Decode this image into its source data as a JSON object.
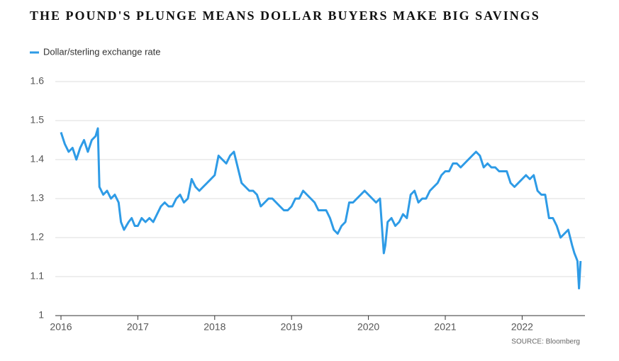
{
  "chart_data": {
    "type": "line",
    "title": "THE POUND'S PLUNGE MEANS DOLLAR BUYERS MAKE BIG SAVINGS",
    "source": "SOURCE: Bloomberg",
    "x": [
      2016.0,
      2016.05,
      2016.1,
      2016.15,
      2016.2,
      2016.25,
      2016.3,
      2016.35,
      2016.4,
      2016.45,
      2016.48,
      2016.5,
      2016.55,
      2016.6,
      2016.65,
      2016.7,
      2016.75,
      2016.78,
      2016.82,
      2016.88,
      2016.92,
      2016.96,
      2017.0,
      2017.05,
      2017.1,
      2017.15,
      2017.2,
      2017.25,
      2017.3,
      2017.35,
      2017.4,
      2017.45,
      2017.5,
      2017.55,
      2017.6,
      2017.65,
      2017.7,
      2017.75,
      2017.8,
      2017.85,
      2017.9,
      2017.95,
      2018.0,
      2018.05,
      2018.1,
      2018.15,
      2018.2,
      2018.25,
      2018.3,
      2018.35,
      2018.4,
      2018.45,
      2018.5,
      2018.55,
      2018.6,
      2018.65,
      2018.7,
      2018.75,
      2018.8,
      2018.85,
      2018.9,
      2018.95,
      2019.0,
      2019.05,
      2019.1,
      2019.15,
      2019.2,
      2019.25,
      2019.3,
      2019.35,
      2019.4,
      2019.45,
      2019.5,
      2019.55,
      2019.6,
      2019.65,
      2019.7,
      2019.75,
      2019.8,
      2019.85,
      2019.9,
      2019.95,
      2020.0,
      2020.05,
      2020.1,
      2020.15,
      2020.2,
      2020.22,
      2020.25,
      2020.3,
      2020.35,
      2020.4,
      2020.45,
      2020.5,
      2020.55,
      2020.6,
      2020.65,
      2020.7,
      2020.75,
      2020.8,
      2020.85,
      2020.9,
      2020.95,
      2021.0,
      2021.05,
      2021.1,
      2021.15,
      2021.2,
      2021.25,
      2021.3,
      2021.35,
      2021.4,
      2021.45,
      2021.5,
      2021.55,
      2021.6,
      2021.65,
      2021.7,
      2021.75,
      2021.8,
      2021.85,
      2021.9,
      2021.95,
      2022.0,
      2022.05,
      2022.1,
      2022.15,
      2022.2,
      2022.25,
      2022.3,
      2022.35,
      2022.4,
      2022.45,
      2022.5,
      2022.55,
      2022.6,
      2022.65,
      2022.68,
      2022.7,
      2022.72,
      2022.74,
      2022.76
    ],
    "series": [
      {
        "name": "Dollar/sterling exchange rate",
        "color": "#2e9be6",
        "values": [
          1.47,
          1.44,
          1.42,
          1.43,
          1.4,
          1.43,
          1.45,
          1.42,
          1.45,
          1.46,
          1.48,
          1.33,
          1.31,
          1.32,
          1.3,
          1.31,
          1.29,
          1.24,
          1.22,
          1.24,
          1.25,
          1.23,
          1.23,
          1.25,
          1.24,
          1.25,
          1.24,
          1.26,
          1.28,
          1.29,
          1.28,
          1.28,
          1.3,
          1.31,
          1.29,
          1.3,
          1.35,
          1.33,
          1.32,
          1.33,
          1.34,
          1.35,
          1.36,
          1.41,
          1.4,
          1.39,
          1.41,
          1.42,
          1.38,
          1.34,
          1.33,
          1.32,
          1.32,
          1.31,
          1.28,
          1.29,
          1.3,
          1.3,
          1.29,
          1.28,
          1.27,
          1.27,
          1.28,
          1.3,
          1.3,
          1.32,
          1.31,
          1.3,
          1.29,
          1.27,
          1.27,
          1.27,
          1.25,
          1.22,
          1.21,
          1.23,
          1.24,
          1.29,
          1.29,
          1.3,
          1.31,
          1.32,
          1.31,
          1.3,
          1.29,
          1.3,
          1.16,
          1.18,
          1.24,
          1.25,
          1.23,
          1.24,
          1.26,
          1.25,
          1.31,
          1.32,
          1.29,
          1.3,
          1.3,
          1.32,
          1.33,
          1.34,
          1.36,
          1.37,
          1.37,
          1.39,
          1.39,
          1.38,
          1.39,
          1.4,
          1.41,
          1.42,
          1.41,
          1.38,
          1.39,
          1.38,
          1.38,
          1.37,
          1.37,
          1.37,
          1.34,
          1.33,
          1.34,
          1.35,
          1.36,
          1.35,
          1.36,
          1.32,
          1.31,
          1.31,
          1.25,
          1.25,
          1.23,
          1.2,
          1.21,
          1.22,
          1.18,
          1.16,
          1.15,
          1.14,
          1.07,
          1.14
        ]
      }
    ],
    "xlim": [
      2016,
      2022.85
    ],
    "xticks": [
      2016,
      2017,
      2018,
      2019,
      2020,
      2021,
      2022
    ],
    "ylim": [
      1,
      1.6
    ],
    "yticks": [
      1,
      1.1,
      1.2,
      1.3,
      1.4,
      1.5,
      1.6
    ],
    "grid": true,
    "legend": "top-left"
  }
}
